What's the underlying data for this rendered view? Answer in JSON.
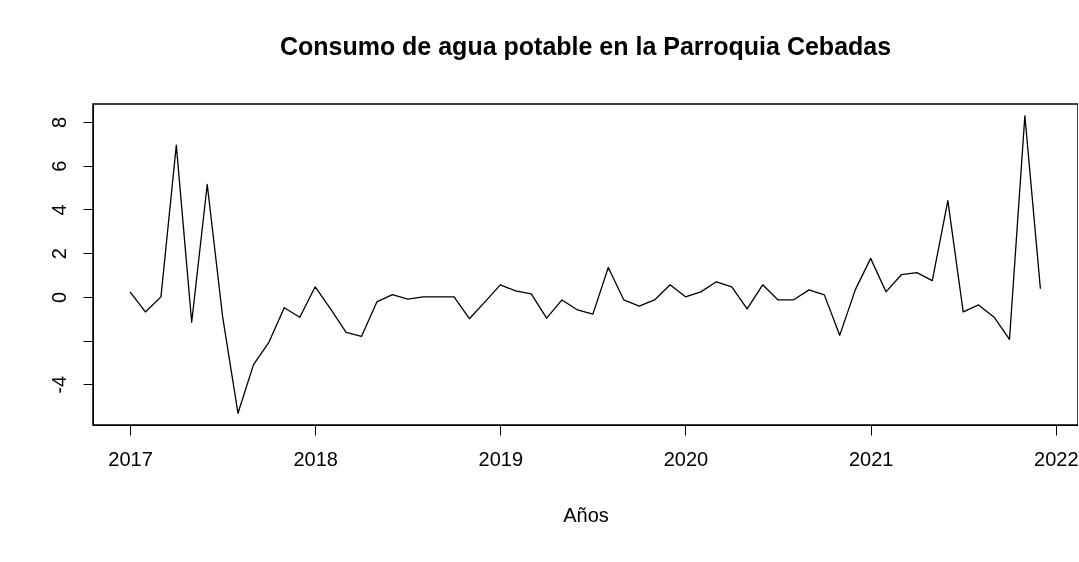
{
  "chart_data": {
    "type": "line",
    "title": "Consumo de agua potable en la Parroquia Cebadas",
    "xlabel": "Años",
    "x": [
      2017,
      2017.083,
      2017.167,
      2017.25,
      2017.333,
      2017.417,
      2017.5,
      2017.583,
      2017.667,
      2017.75,
      2017.833,
      2017.917,
      2018,
      2018.083,
      2018.167,
      2018.25,
      2018.333,
      2018.417,
      2018.5,
      2018.583,
      2018.667,
      2018.75,
      2018.833,
      2018.917,
      2019,
      2019.083,
      2019.167,
      2019.25,
      2019.333,
      2019.417,
      2019.5,
      2019.583,
      2019.667,
      2019.75,
      2019.833,
      2019.917,
      2020,
      2020.083,
      2020.167,
      2020.25,
      2020.333,
      2020.417,
      2020.5,
      2020.583,
      2020.667,
      2020.75,
      2020.833,
      2020.917,
      2021,
      2021.083,
      2021.167,
      2021.25,
      2021.333,
      2021.417,
      2021.5,
      2021.583,
      2021.667,
      2021.75,
      2021.833,
      2021.917
    ],
    "series": [
      {
        "color": "#000000",
        "values": [
          0.23,
          -0.69,
          0.0,
          6.94,
          -1.16,
          5.14,
          -0.9,
          -5.32,
          -3.1,
          -2.08,
          -0.5,
          -0.93,
          0.46,
          -0.55,
          -1.62,
          -1.81,
          -0.23,
          0.1,
          -0.1,
          0.0,
          0.0,
          0.0,
          -1.0,
          -0.23,
          0.55,
          0.27,
          0.14,
          -0.97,
          -0.14,
          -0.6,
          -0.79,
          1.34,
          -0.14,
          -0.42,
          -0.14,
          0.55,
          0.0,
          0.23,
          0.69,
          0.46,
          -0.55,
          0.55,
          -0.14,
          -0.14,
          0.32,
          0.09,
          -1.76,
          0.32,
          1.76,
          0.23,
          1.02,
          1.11,
          0.74,
          4.4,
          -0.69,
          -0.37,
          -0.93,
          -1.94,
          8.28,
          0.37
        ]
      }
    ],
    "xlim": [
      2016.8,
      2022.12
    ],
    "xticks": [
      2017,
      2018,
      2019,
      2020,
      2021,
      2022
    ],
    "ylim": [
      -5.86,
      8.82
    ],
    "yticks": [
      -4,
      {
        "value": -2,
        "label": null
      },
      0,
      2,
      4,
      6,
      8
    ],
    "grid": false,
    "legend": false,
    "marker": "none",
    "line_style": "solid"
  }
}
